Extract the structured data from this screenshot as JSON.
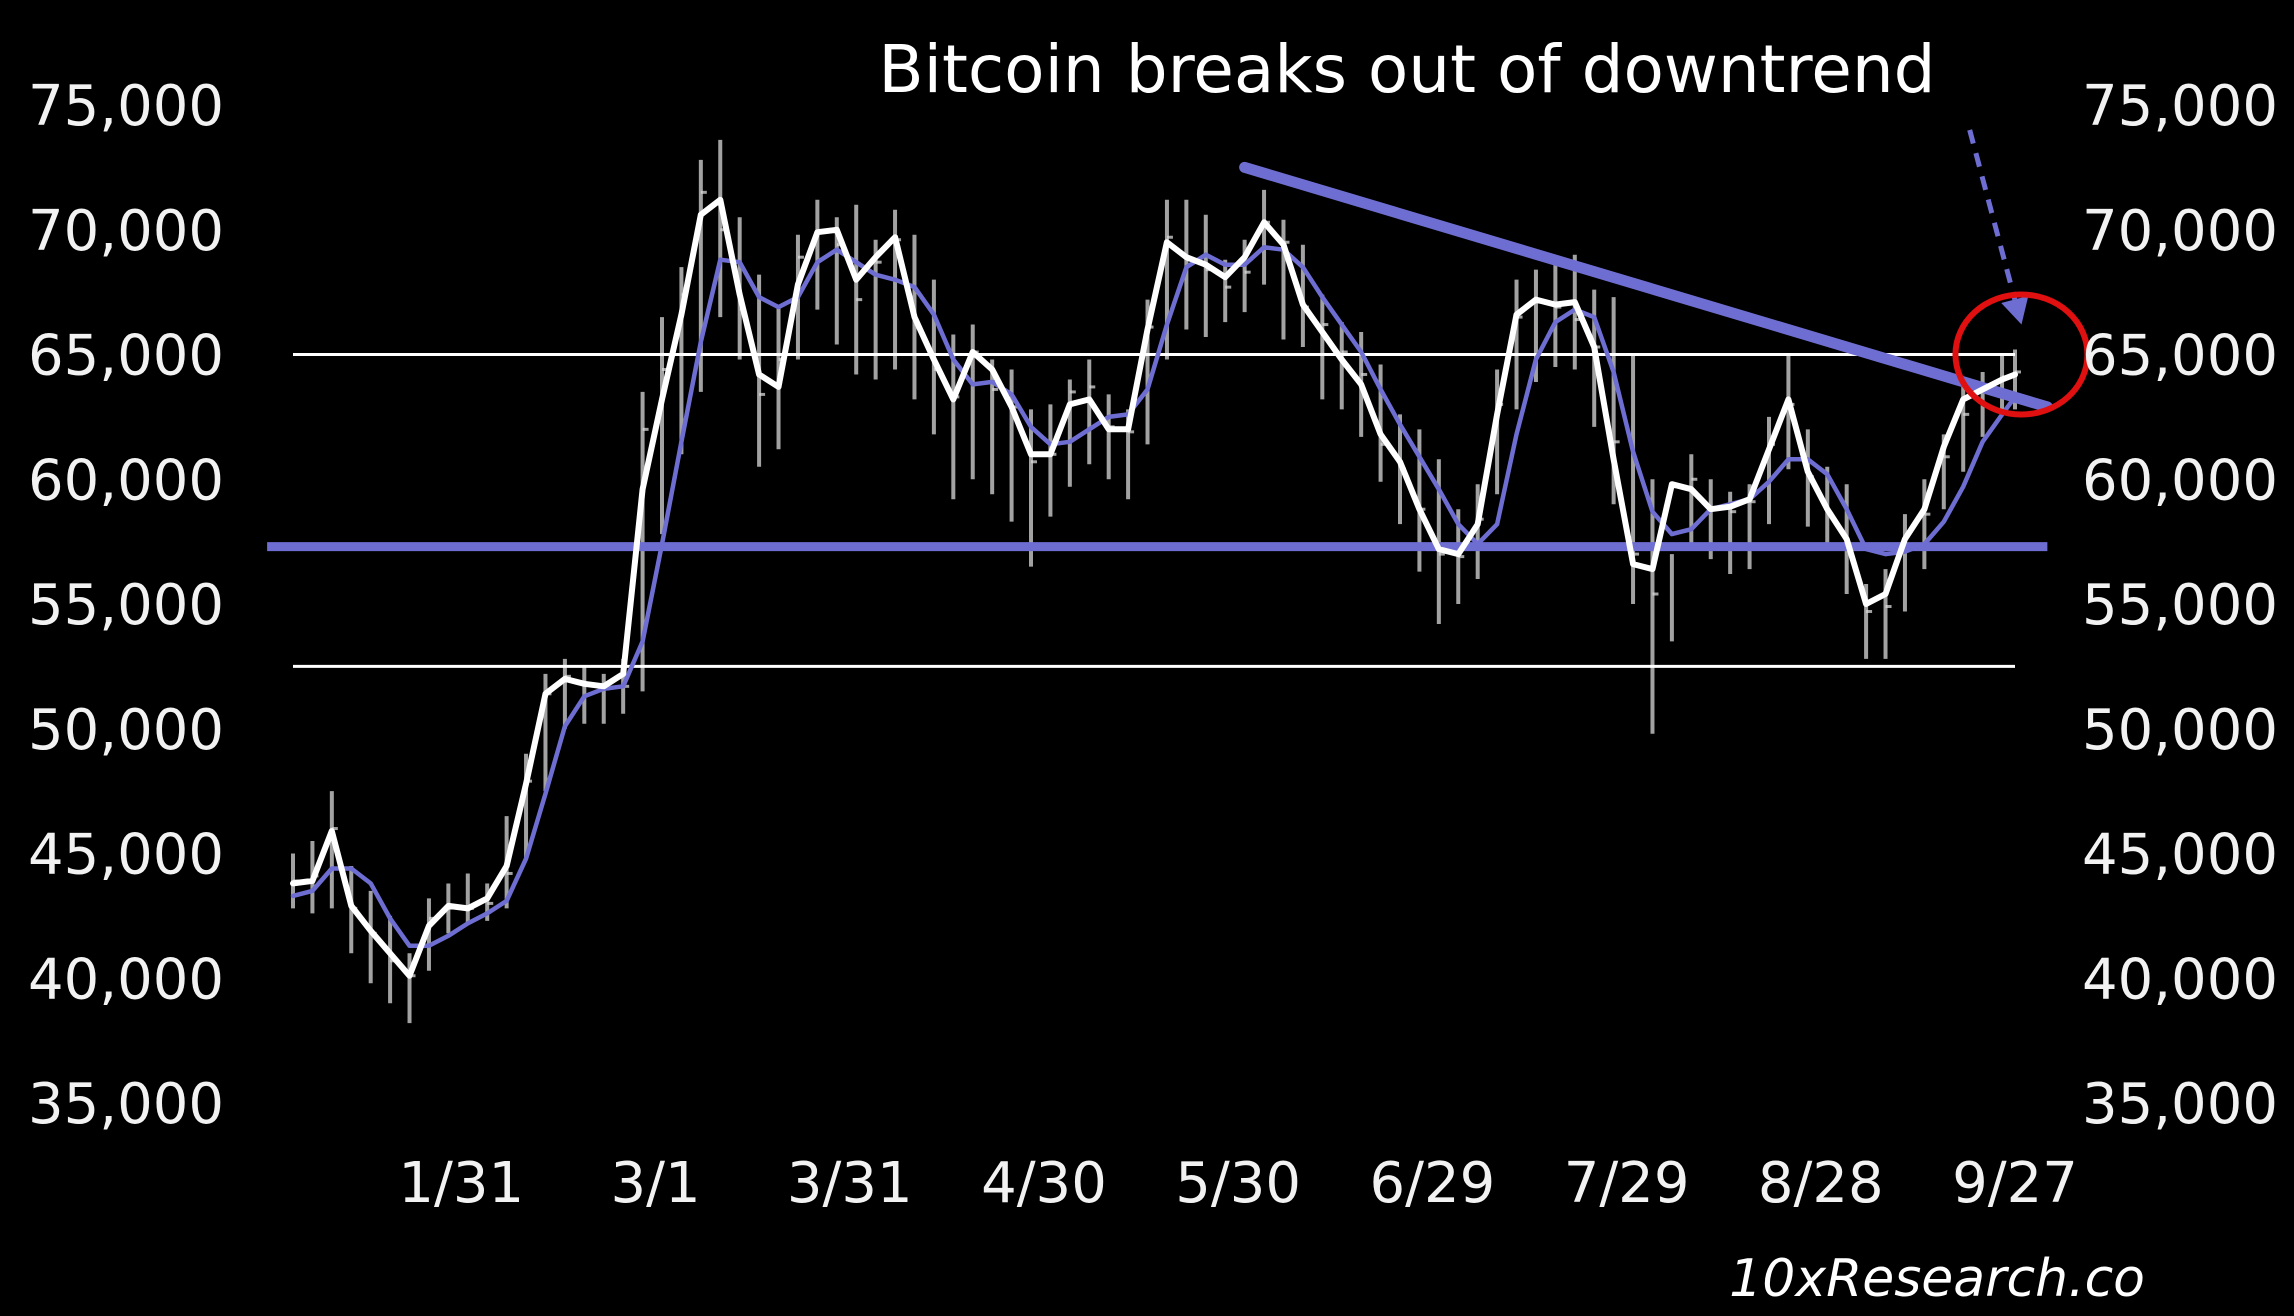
{
  "chart_data": {
    "type": "line",
    "title": "Bitcoin breaks out of downtrend",
    "watermark": "10xResearch.co",
    "xlabel": "",
    "ylabel": "",
    "x_ticks": [
      "1/31",
      "3/1",
      "3/31",
      "4/30",
      "5/30",
      "6/29",
      "7/29",
      "8/28",
      "9/27"
    ],
    "x_range": [
      "1/5",
      "9/27"
    ],
    "y_ticks_left": [
      "75,000",
      "70,000",
      "65,000",
      "60,000",
      "55,000",
      "50,000",
      "45,000",
      "40,000",
      "35,000"
    ],
    "y_ticks_right": [
      "75,000",
      "70,000",
      "65,000",
      "60,000",
      "55,000",
      "50,000",
      "45,000",
      "40,000",
      "35,000"
    ],
    "ylim": [
      35000,
      75000
    ],
    "grid": false,
    "series": [
      {
        "style": "daily price bars",
        "color": "#d9d9d9",
        "x": [
          "1/5",
          "1/8",
          "1/11",
          "1/14",
          "1/17",
          "1/20",
          "1/23",
          "1/26",
          "1/29",
          "2/1",
          "2/4",
          "2/7",
          "2/10",
          "2/13",
          "2/16",
          "2/19",
          "2/22",
          "2/25",
          "2/28",
          "3/2",
          "3/5",
          "3/8",
          "3/11",
          "3/14",
          "3/17",
          "3/20",
          "3/23",
          "3/26",
          "3/29",
          "4/1",
          "4/4",
          "4/7",
          "4/10",
          "4/13",
          "4/16",
          "4/19",
          "4/22",
          "4/25",
          "4/28",
          "5/1",
          "5/4",
          "5/7",
          "5/10",
          "5/13",
          "5/16",
          "5/19",
          "5/22",
          "5/25",
          "5/28",
          "5/31",
          "6/3",
          "6/6",
          "6/9",
          "6/12",
          "6/15",
          "6/18",
          "6/21",
          "6/24",
          "6/27",
          "6/30",
          "7/3",
          "7/6",
          "7/9",
          "7/12",
          "7/15",
          "7/18",
          "7/21",
          "7/24",
          "7/27",
          "7/30",
          "8/2",
          "8/5",
          "8/8",
          "8/11",
          "8/14",
          "8/17",
          "8/20",
          "8/23",
          "8/26",
          "8/29",
          "9/1",
          "9/4",
          "9/7",
          "9/10",
          "9/13",
          "9/16",
          "9/19",
          "9/22",
          "9/25",
          "9/27"
        ],
        "high": [
          45000,
          45500,
          47500,
          44500,
          43500,
          42500,
          41000,
          43200,
          43800,
          44200,
          43800,
          46500,
          49000,
          52200,
          52800,
          52500,
          52200,
          52800,
          63500,
          66500,
          68500,
          72800,
          73600,
          70500,
          68200,
          67000,
          69800,
          71200,
          70500,
          71000,
          69600,
          70800,
          69800,
          68000,
          65800,
          66200,
          64800,
          64400,
          62800,
          63000,
          64000,
          64800,
          63400,
          62800,
          67200,
          71200,
          71200,
          70600,
          68800,
          69600,
          71600,
          70400,
          69400,
          67400,
          66300,
          65900,
          64600,
          62600,
          62000,
          60800,
          58800,
          59800,
          64400,
          68000,
          68400,
          68800,
          69000,
          67600,
          67300,
          65000,
          60000,
          57000,
          61000,
          60000,
          59500,
          59800,
          62500,
          65000,
          62000,
          60500,
          59800,
          55800,
          56400,
          58600,
          60000,
          61800,
          63700,
          64300,
          65000,
          65200
        ],
        "low": [
          42800,
          42600,
          42800,
          41000,
          39800,
          39000,
          38200,
          40300,
          41800,
          42200,
          42300,
          42800,
          44800,
          47500,
          50000,
          50200,
          50200,
          50600,
          51500,
          57800,
          61000,
          63500,
          66500,
          64800,
          60500,
          61200,
          64800,
          66800,
          65400,
          64200,
          64000,
          64400,
          63200,
          61800,
          59200,
          60000,
          59400,
          58300,
          56500,
          58500,
          59700,
          60600,
          60000,
          59200,
          61400,
          64800,
          66000,
          65700,
          66300,
          66700,
          67800,
          65600,
          65300,
          63200,
          62800,
          61700,
          59900,
          58200,
          56300,
          54200,
          55000,
          56000,
          59400,
          62800,
          63900,
          64500,
          64400,
          62100,
          59000,
          55000,
          49800,
          53500,
          57300,
          56800,
          56200,
          56400,
          58200,
          60400,
          58100,
          57300,
          55400,
          52800,
          52800,
          54700,
          56400,
          58800,
          60300,
          61700,
          62700,
          62800
        ],
        "close": [
          43900,
          44100,
          46000,
          42800,
          41800,
          40700,
          40100,
          42400,
          42900,
          42800,
          43000,
          44200,
          47900,
          51400,
          52100,
          51800,
          51600,
          51700,
          62000,
          64400,
          67400,
          71500,
          70000,
          66800,
          63400,
          64800,
          68900,
          69900,
          69400,
          67200,
          68700,
          69600,
          66200,
          64400,
          63300,
          65100,
          63600,
          62900,
          60700,
          61000,
          63500,
          63700,
          62100,
          61900,
          66100,
          69700,
          68800,
          68400,
          67700,
          68300,
          70300,
          69500,
          66900,
          66200,
          65100,
          64200,
          61400,
          60400,
          58800,
          57000,
          56900,
          58400,
          63000,
          66500,
          67100,
          66900,
          66400,
          65300,
          61500,
          57000,
          55400,
          59700,
          60000,
          58800,
          58700,
          59100,
          61400,
          63000,
          60100,
          58600,
          57200,
          54700,
          54900,
          57300,
          58600,
          60900,
          62600,
          63600,
          64100,
          64300
        ]
      },
      {
        "name": "",
        "style": "short moving average",
        "color": "#ffffff",
        "x": [
          "1/5",
          "1/8",
          "1/11",
          "1/14",
          "1/17",
          "1/20",
          "1/23",
          "1/26",
          "1/29",
          "2/1",
          "2/4",
          "2/7",
          "2/10",
          "2/13",
          "2/16",
          "2/19",
          "2/22",
          "2/25",
          "2/28",
          "3/2",
          "3/5",
          "3/8",
          "3/11",
          "3/14",
          "3/17",
          "3/20",
          "3/23",
          "3/26",
          "3/29",
          "4/1",
          "4/4",
          "4/7",
          "4/10",
          "4/13",
          "4/16",
          "4/19",
          "4/22",
          "4/25",
          "4/28",
          "5/1",
          "5/4",
          "5/7",
          "5/10",
          "5/13",
          "5/16",
          "5/19",
          "5/22",
          "5/25",
          "5/28",
          "5/31",
          "6/3",
          "6/6",
          "6/9",
          "6/12",
          "6/15",
          "6/18",
          "6/21",
          "6/24",
          "6/27",
          "6/30",
          "7/3",
          "7/6",
          "7/9",
          "7/12",
          "7/15",
          "7/18",
          "7/21",
          "7/24",
          "7/27",
          "7/30",
          "8/2",
          "8/5",
          "8/8",
          "8/11",
          "8/14",
          "8/17",
          "8/20",
          "8/23",
          "8/26",
          "8/29",
          "9/1",
          "9/4",
          "9/7",
          "9/10",
          "9/13",
          "9/16",
          "9/19",
          "9/22",
          "9/25",
          "9/27"
        ],
        "values": [
          43800,
          43900,
          45900,
          42900,
          41900,
          41000,
          40100,
          42100,
          42900,
          42800,
          43200,
          44500,
          47800,
          51400,
          52000,
          51800,
          51700,
          52200,
          59600,
          63200,
          66600,
          70600,
          71200,
          67400,
          64200,
          63700,
          67800,
          69900,
          70000,
          68000,
          68900,
          69700,
          66500,
          64800,
          63200,
          65100,
          64400,
          62900,
          61000,
          61000,
          63000,
          63200,
          62000,
          62000,
          66000,
          69500,
          68900,
          68600,
          68100,
          68900,
          70300,
          69400,
          67000,
          65900,
          64800,
          63800,
          61800,
          60700,
          58800,
          57200,
          57000,
          58200,
          62600,
          66600,
          67200,
          67000,
          67100,
          65300,
          60800,
          56600,
          56400,
          59800,
          59600,
          58800,
          58900,
          59200,
          61200,
          63200,
          60300,
          58800,
          57600,
          55000,
          55400,
          57600,
          58800,
          61300,
          63200,
          63600,
          64000,
          64200
        ]
      },
      {
        "name": "",
        "style": "long moving average",
        "color": "#6e6ed2",
        "x": [
          "1/5",
          "1/8",
          "1/11",
          "1/14",
          "1/17",
          "1/20",
          "1/23",
          "1/26",
          "1/29",
          "2/1",
          "2/4",
          "2/7",
          "2/10",
          "2/13",
          "2/16",
          "2/19",
          "2/22",
          "2/25",
          "2/28",
          "3/2",
          "3/5",
          "3/8",
          "3/11",
          "3/14",
          "3/17",
          "3/20",
          "3/23",
          "3/26",
          "3/29",
          "4/1",
          "4/4",
          "4/7",
          "4/10",
          "4/13",
          "4/16",
          "4/19",
          "4/22",
          "4/25",
          "4/28",
          "5/1",
          "5/4",
          "5/7",
          "5/10",
          "5/13",
          "5/16",
          "5/19",
          "5/22",
          "5/25",
          "5/28",
          "5/31",
          "6/3",
          "6/6",
          "6/9",
          "6/12",
          "6/15",
          "6/18",
          "6/21",
          "6/24",
          "6/27",
          "6/30",
          "7/3",
          "7/6",
          "7/9",
          "7/12",
          "7/15",
          "7/18",
          "7/21",
          "7/24",
          "7/27",
          "7/30",
          "8/2",
          "8/5",
          "8/8",
          "8/11",
          "8/14",
          "8/17",
          "8/20",
          "8/23",
          "8/26",
          "8/29",
          "9/1",
          "9/4",
          "9/7",
          "9/10",
          "9/13",
          "9/16",
          "9/19",
          "9/22",
          "9/25",
          "9/27"
        ],
        "values": [
          43300,
          43500,
          44400,
          44400,
          43800,
          42400,
          41300,
          41300,
          41700,
          42200,
          42600,
          43100,
          44800,
          47400,
          50100,
          51300,
          51600,
          51700,
          53500,
          57400,
          61500,
          65500,
          68800,
          68700,
          67300,
          66900,
          67300,
          68700,
          69200,
          68700,
          68200,
          68000,
          67700,
          66600,
          64800,
          63800,
          63900,
          63400,
          62100,
          61400,
          61500,
          62000,
          62500,
          62600,
          63600,
          66200,
          68500,
          69000,
          68600,
          68600,
          69300,
          69200,
          68500,
          67300,
          66200,
          65100,
          63600,
          62200,
          60900,
          59600,
          58200,
          57400,
          58200,
          61800,
          64800,
          66300,
          66800,
          66500,
          64300,
          61100,
          58700,
          57800,
          58000,
          58800,
          59000,
          59200,
          59900,
          60800,
          60800,
          60200,
          58800,
          57200,
          57000,
          57100,
          57400,
          58300,
          59700,
          61500,
          62600,
          63300
        ]
      }
    ],
    "reference_lines": [
      {
        "kind": "horizontal",
        "value": 65000,
        "color": "#ffffff",
        "x": [
          "1/5",
          "9/27"
        ]
      },
      {
        "kind": "horizontal",
        "value": 52500,
        "color": "#ffffff",
        "x": [
          "1/5",
          "9/27"
        ]
      },
      {
        "kind": "horizontal",
        "value": 57300,
        "color": "#6e6ed2",
        "x": [
          "1/1",
          "10/2"
        ]
      },
      {
        "kind": "trendline",
        "color": "#6e6ed2",
        "x": [
          "5/31",
          "10/2"
        ],
        "values": [
          72500,
          62900
        ]
      }
    ],
    "annotations": [
      {
        "kind": "dashed-arrow",
        "color": "#6e6ed2",
        "from": {
          "x": "9/20",
          "y": 74000
        },
        "to": {
          "x": "9/28",
          "y": 66200
        }
      },
      {
        "kind": "circle",
        "color": "#e01010",
        "center": {
          "x": "9/28",
          "y": 65000
        }
      }
    ]
  }
}
